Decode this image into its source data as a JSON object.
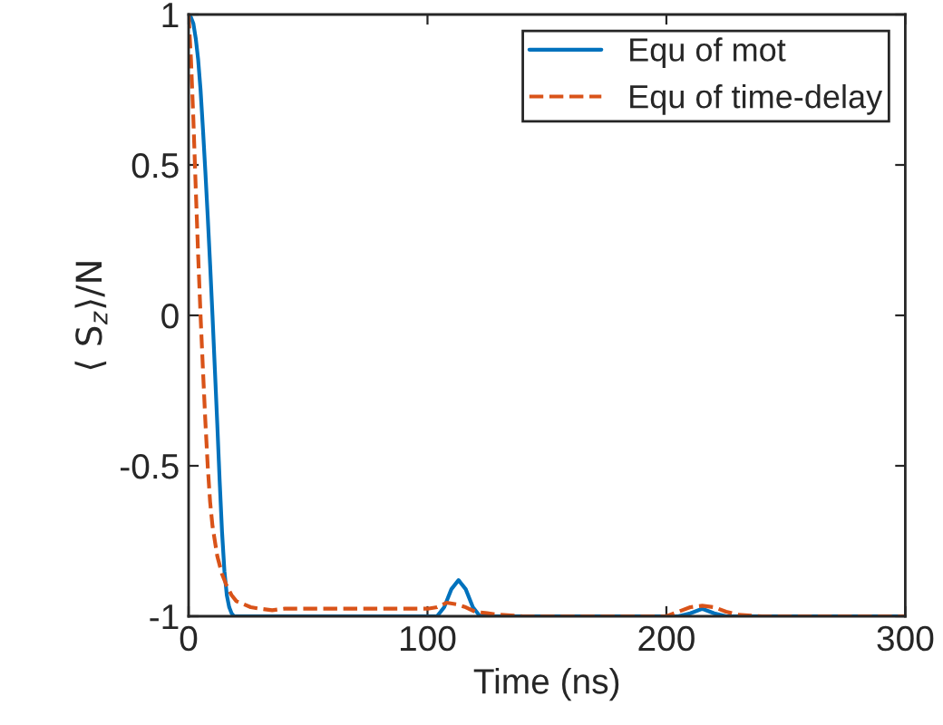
{
  "chart_data": {
    "type": "line",
    "xlabel": "Time (ns)",
    "ylabel": "⟨ S$_{z}$⟩/N",
    "xlim": [
      0,
      300
    ],
    "ylim": [
      -1,
      1
    ],
    "xticks": [
      0,
      100,
      200,
      300
    ],
    "yticks": [
      -1,
      -0.5,
      0,
      0.5,
      1
    ],
    "grid": false,
    "legend": "top right",
    "marker": "none",
    "series": [
      {
        "name": "Equ of mot",
        "color": "#0072bd",
        "line_style": "solid",
        "x": [
          0,
          1,
          2,
          3,
          4,
          5,
          6,
          7,
          8,
          9,
          10,
          11,
          12,
          13,
          14,
          15,
          16,
          17,
          18,
          19,
          20,
          22,
          100,
          104,
          107,
          110,
          113,
          116,
          119,
          122,
          125,
          200,
          205,
          210,
          215,
          220,
          225,
          230,
          300
        ],
        "values": [
          1,
          0.99,
          0.97,
          0.92,
          0.85,
          0.75,
          0.62,
          0.48,
          0.33,
          0.17,
          0.0,
          -0.18,
          -0.36,
          -0.55,
          -0.72,
          -0.85,
          -0.93,
          -0.97,
          -0.99,
          -1,
          -1,
          -1,
          -1,
          -1,
          -0.97,
          -0.91,
          -0.88,
          -0.91,
          -0.97,
          -1,
          -1,
          -1,
          -1,
          -0.99,
          -0.975,
          -0.99,
          -1,
          -1,
          -1
        ]
      },
      {
        "name": "Equ of time-delay",
        "color": "#d95319",
        "line_style": "dashed",
        "x": [
          0,
          1,
          2,
          3,
          4,
          5,
          6,
          7,
          8,
          9,
          10,
          12,
          14,
          16,
          18,
          20,
          23,
          26,
          30,
          35,
          40,
          60,
          80,
          100,
          104,
          108,
          112,
          116,
          120,
          125,
          130,
          140,
          150,
          200,
          205,
          210,
          215,
          220,
          225,
          230,
          240,
          300
        ],
        "values": [
          1,
          0.85,
          0.65,
          0.42,
          0.2,
          0.0,
          -0.18,
          -0.35,
          -0.5,
          -0.62,
          -0.7,
          -0.8,
          -0.86,
          -0.9,
          -0.93,
          -0.95,
          -0.96,
          -0.97,
          -0.975,
          -0.98,
          -0.975,
          -0.975,
          -0.975,
          -0.975,
          -0.97,
          -0.955,
          -0.96,
          -0.97,
          -0.985,
          -0.99,
          -0.995,
          -1,
          -1,
          -1,
          -0.985,
          -0.97,
          -0.965,
          -0.97,
          -0.985,
          -0.995,
          -1,
          -1
        ]
      }
    ]
  }
}
